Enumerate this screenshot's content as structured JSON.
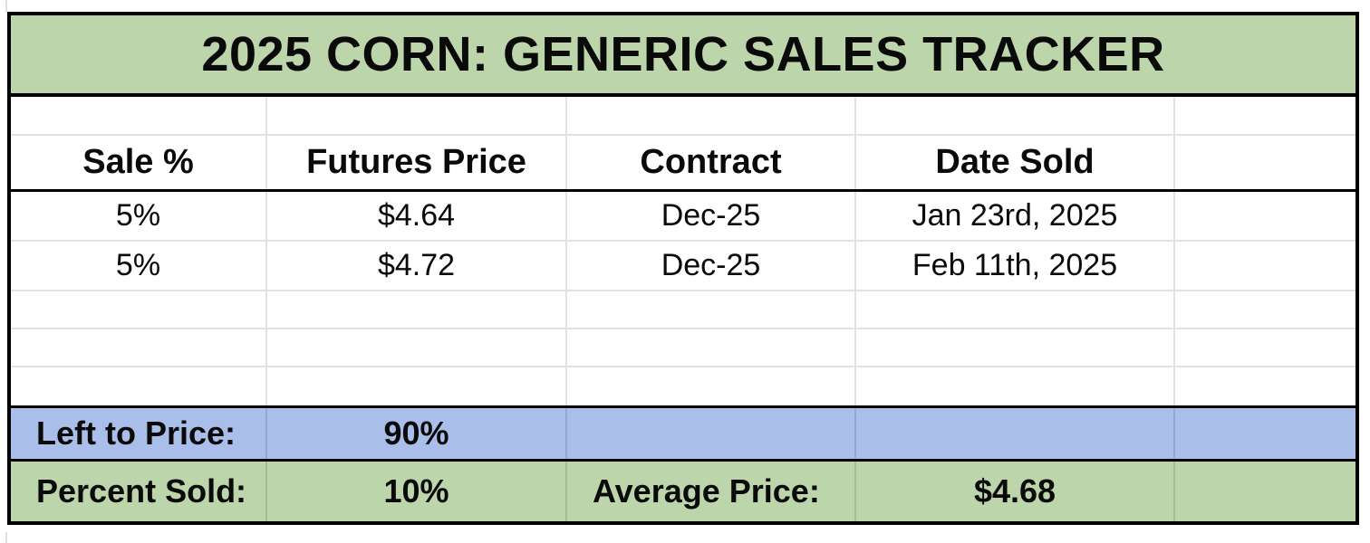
{
  "title": "2025 CORN: GENERIC SALES TRACKER",
  "columns": {
    "sale_pct": "Sale %",
    "futures_price": "Futures Price",
    "contract": "Contract",
    "date_sold": "Date Sold",
    "extra": ""
  },
  "rows": [
    {
      "sale_pct": "5%",
      "futures_price": "$4.64",
      "contract": "Dec-25",
      "date_sold": "Jan 23rd, 2025"
    },
    {
      "sale_pct": "5%",
      "futures_price": "$4.72",
      "contract": "Dec-25",
      "date_sold": "Feb 11th, 2025"
    }
  ],
  "summary": {
    "left_to_price_label": "Left to Price:",
    "left_to_price_value": "90%",
    "percent_sold_label": "Percent Sold:",
    "percent_sold_value": "10%",
    "average_price_label": "Average Price:",
    "average_price_value": "$4.68"
  },
  "colors": {
    "green_fill": "#bcd5aa",
    "blue_fill": "#a9bfe9",
    "gridline": "#e2e2e2",
    "border": "#000000"
  }
}
